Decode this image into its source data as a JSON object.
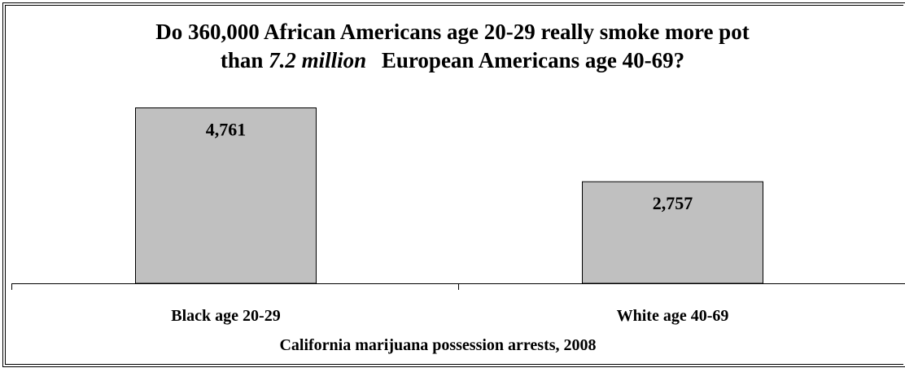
{
  "chart_data": {
    "type": "bar",
    "title": "Do 360,000 African Americans age 20-29 really smoke more pot than 7.2 million European Americans age 40-69?",
    "title_line1": "Do 360,000 African Americans age 20-29 really smoke more pot",
    "title_line2_prefix": "than",
    "title_line2_italic": "7.2 million",
    "title_line2_suffix": "European Americans age 40-69?",
    "categories": [
      "Black age 20-29",
      "White age 40-69"
    ],
    "values": [
      4761,
      2757
    ],
    "value_labels": [
      "4,761",
      "2,757"
    ],
    "xlabel": "California marijuana possession arrests, 2008",
    "ylabel": "",
    "ylim": [
      0,
      5700
    ],
    "grid": false,
    "legend": "none",
    "colors": {
      "bar_fill": "#c0c0c0",
      "bar_stroke": "#000000",
      "axis": "#000000",
      "background": "#ffffff"
    }
  }
}
